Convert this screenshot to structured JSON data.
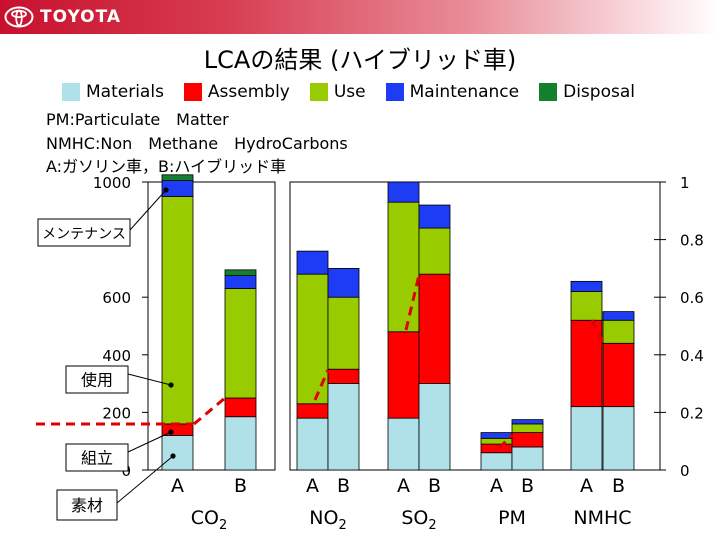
{
  "header": {
    "brand": "TOYOTA"
  },
  "title": "LCAの結果 (ハイブリッド車)",
  "notes": [
    "PM:Particulate　Matter",
    "NMHC:Non　Methane　HydroCarbons",
    "A:ガソリン車，B:ハイブリッド車"
  ],
  "chart_data": {
    "type": "bar",
    "stacked": true,
    "legend_position": "top",
    "series": [
      {
        "name": "Materials",
        "color": "#b0e0e8"
      },
      {
        "name": "Assembly",
        "color": "#ff0000"
      },
      {
        "name": "Use",
        "color": "#99cc00"
      },
      {
        "name": "Maintenance",
        "color": "#1f3cf5"
      },
      {
        "name": "Disposal",
        "color": "#138030"
      }
    ],
    "left_axis": {
      "ticks": [
        "0",
        "200",
        "400",
        "600",
        "1000"
      ],
      "range": [
        0,
        1000
      ]
    },
    "right_axis": {
      "ticks": [
        "0",
        "0.2",
        "0.4",
        "0.6",
        "0.8",
        "1"
      ],
      "range": [
        0,
        1
      ]
    },
    "groups": [
      {
        "label": "CO",
        "sub": "2",
        "axis": "left",
        "bars": [
          {
            "label": "A",
            "values": [
              120,
              40,
              790,
              55,
              20
            ]
          },
          {
            "label": "B",
            "values": [
              185,
              65,
              380,
              45,
              20
            ]
          }
        ]
      },
      {
        "label": "NO",
        "sub": "2",
        "axis": "right",
        "bars": [
          {
            "label": "A",
            "values": [
              0.18,
              0.05,
              0.45,
              0.08,
              0
            ]
          },
          {
            "label": "B",
            "values": [
              0.3,
              0.05,
              0.25,
              0.1,
              0
            ]
          }
        ]
      },
      {
        "label": "SO",
        "sub": "2",
        "axis": "right",
        "bars": [
          {
            "label": "A",
            "values": [
              0.18,
              0.3,
              0.45,
              0.07,
              0
            ]
          },
          {
            "label": "B",
            "values": [
              0.3,
              0.38,
              0.16,
              0.08,
              0
            ]
          }
        ]
      },
      {
        "label": "PM",
        "sub": "",
        "axis": "right",
        "bars": [
          {
            "label": "A",
            "values": [
              0.06,
              0.03,
              0.02,
              0.02,
              0
            ]
          },
          {
            "label": "B",
            "values": [
              0.08,
              0.05,
              0.03,
              0.015,
              0
            ]
          }
        ]
      },
      {
        "label": "NMHC",
        "sub": "",
        "axis": "right",
        "bars": [
          {
            "label": "A",
            "values": [
              0.22,
              0.3,
              0.1,
              0.035,
              0
            ]
          },
          {
            "label": "B",
            "values": [
              0.22,
              0.22,
              0.08,
              0.03,
              0
            ]
          }
        ]
      }
    ],
    "annotations": [
      "メンテナンス",
      "使用",
      "組立",
      "素材"
    ]
  }
}
